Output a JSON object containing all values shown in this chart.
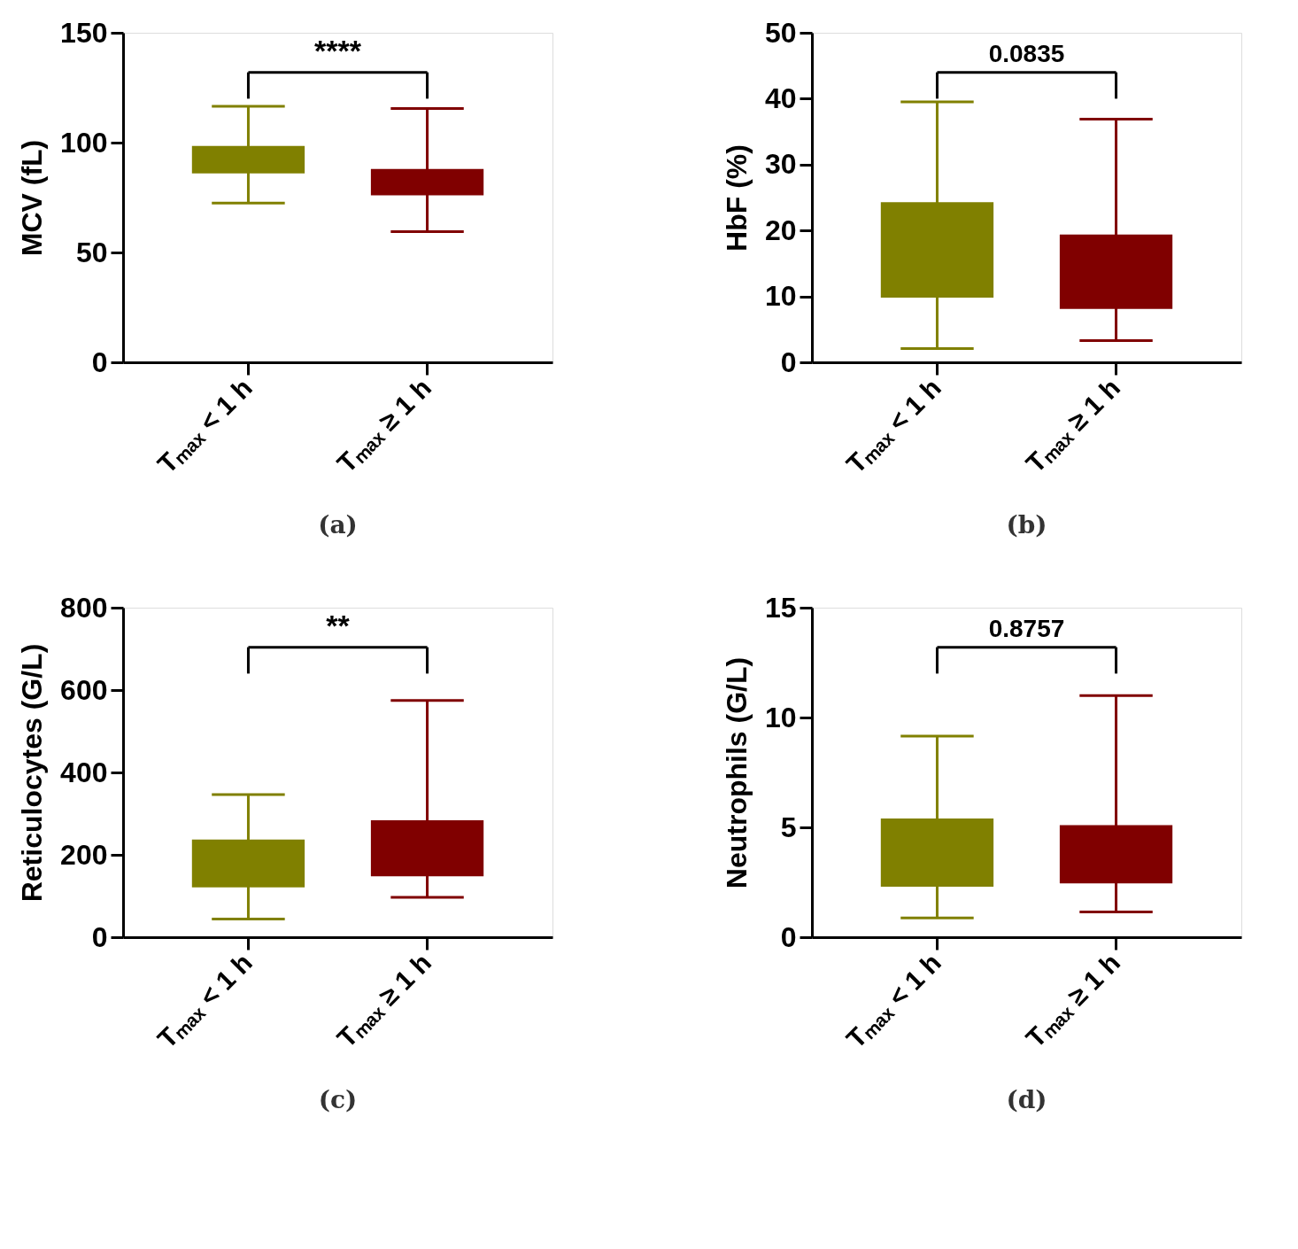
{
  "chart_data": [
    {
      "type": "box",
      "title": "(a)",
      "ylabel": "MCV (fL)",
      "categories": [
        "Tₘₐₓ < 1 h",
        "Tₘₐₓ ≥ 1 h"
      ],
      "colors": [
        "#808000",
        "#800000"
      ],
      "ylim": [
        0,
        150
      ],
      "yticks": [
        0,
        50,
        100,
        150
      ],
      "grid": false,
      "annotations": [
        "****"
      ],
      "boxes": [
        {
          "low": 72.5,
          "q1": 86,
          "q3": 98.5,
          "high": 116.5
        },
        {
          "low": 59.5,
          "q1": 76,
          "q3": 88,
          "high": 115.5
        }
      ]
    },
    {
      "type": "box",
      "title": "(b)",
      "ylabel": "HbF (%)",
      "categories": [
        "Tₘₐₓ < 1 h",
        "Tₘₐₓ ≥ 1 h"
      ],
      "colors": [
        "#808000",
        "#800000"
      ],
      "ylim": [
        0,
        50
      ],
      "yticks": [
        0,
        10,
        20,
        30,
        40,
        50
      ],
      "grid": false,
      "annotations": [
        "0.0835"
      ],
      "boxes": [
        {
          "low": 2.1,
          "q1": 9.8,
          "q3": 24.3,
          "high": 39.5
        },
        {
          "low": 3.3,
          "q1": 8.1,
          "q3": 19.4,
          "high": 36.9
        }
      ]
    },
    {
      "type": "box",
      "title": "(c)",
      "ylabel": "Reticulocytes (G/L)",
      "categories": [
        "Tₘₐₓ < 1 h",
        "Tₘₐₓ ≥ 1 h"
      ],
      "colors": [
        "#808000",
        "#800000"
      ],
      "ylim": [
        0,
        800
      ],
      "yticks": [
        0,
        200,
        400,
        600,
        800
      ],
      "grid": false,
      "annotations": [
        "**"
      ],
      "boxes": [
        {
          "low": 44,
          "q1": 121,
          "q3": 237,
          "high": 346
        },
        {
          "low": 97,
          "q1": 148,
          "q3": 284,
          "high": 575
        }
      ]
    },
    {
      "type": "box",
      "title": "(d)",
      "ylabel": "Neutrophils (G/L)",
      "categories": [
        "Tₘₐₓ < 1 h",
        "Tₘₐₓ ≥ 1 h"
      ],
      "colors": [
        "#808000",
        "#800000"
      ],
      "ylim": [
        0,
        15
      ],
      "yticks": [
        0,
        5,
        10,
        15
      ],
      "grid": false,
      "annotations": [
        "0.8757"
      ],
      "boxes": [
        {
          "low": 0.88,
          "q1": 2.3,
          "q3": 5.4,
          "high": 9.15
        },
        {
          "low": 1.15,
          "q1": 2.45,
          "q3": 5.1,
          "high": 11.0
        }
      ]
    }
  ]
}
